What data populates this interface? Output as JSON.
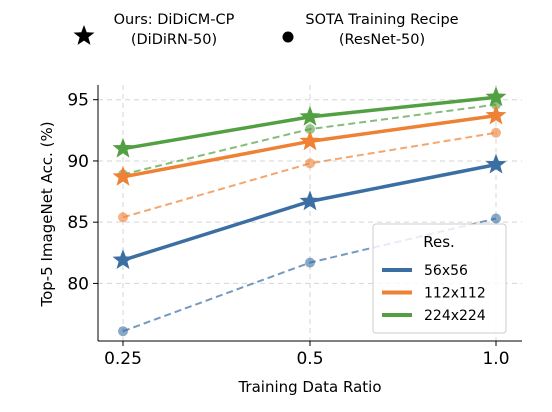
{
  "chart_data": {
    "type": "line",
    "title": "",
    "xlabel": "Training Data Ratio",
    "ylabel": "Top-5 ImageNet Acc. (%)",
    "x": [
      0.25,
      0.5,
      1.0
    ],
    "x_tick_labels": [
      "0.25",
      "0.5",
      "1.0"
    ],
    "x_scale": "log2",
    "y_ticks": [
      80,
      85,
      90,
      95
    ],
    "ylim": [
      75.3,
      96.2
    ],
    "grid": true,
    "marker_legend": [
      {
        "marker": "star",
        "line_1": "Ours: DiDiCM-CP",
        "line_2": "(DiDiRN-50)"
      },
      {
        "marker": "circle",
        "line_1": "SOTA Training Recipe",
        "line_2": "(ResNet-50)"
      }
    ],
    "legend": {
      "title": "Res.",
      "placement": "lower-right",
      "entries": [
        "56x56",
        "112x112",
        "224x224"
      ]
    },
    "series": [
      {
        "name": "56x56",
        "color": "#3b6fa4",
        "ours": [
          81.9,
          86.7,
          89.7
        ],
        "sota": [
          76.1,
          81.7,
          85.3
        ]
      },
      {
        "name": "112x112",
        "color": "#ee8133",
        "ours": [
          88.7,
          91.6,
          93.7
        ],
        "sota": [
          85.4,
          89.8,
          92.3
        ]
      },
      {
        "name": "224x224",
        "color": "#53a043",
        "ours": [
          91.0,
          93.6,
          95.2
        ],
        "sota": [
          88.9,
          92.6,
          94.6
        ]
      }
    ]
  }
}
